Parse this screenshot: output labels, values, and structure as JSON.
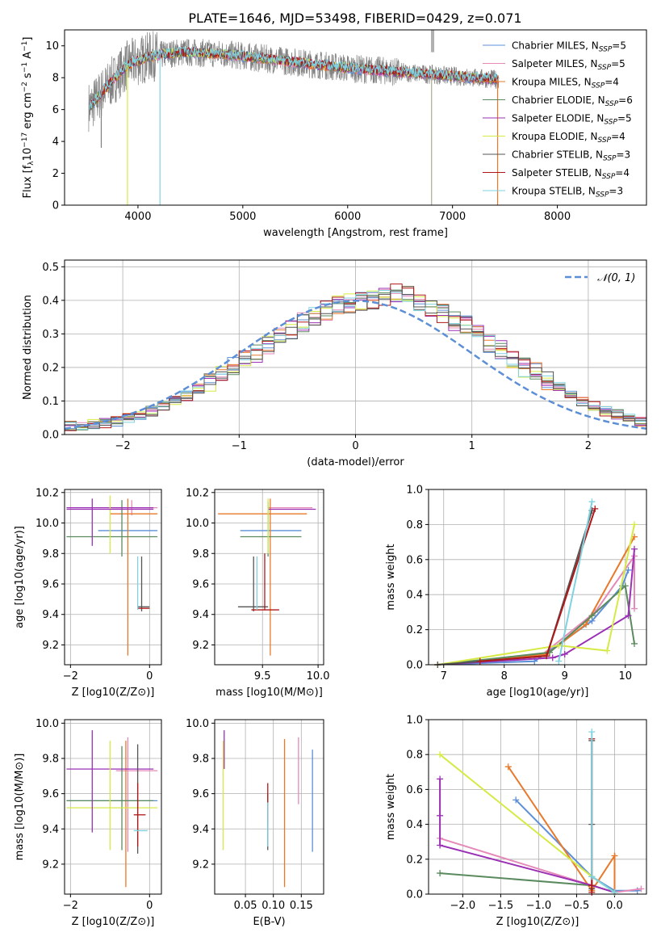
{
  "figure": {
    "title": "PLATE=1646, MJD=53498, FIBERID=0429, z=0.071"
  },
  "chart_data": [
    {
      "id": "spectrum",
      "type": "line",
      "title": "PLATE=1646, MJD=53498, FIBERID=0429, z=0.071",
      "xlabel": "wavelength [Angstrom, rest frame]",
      "ylabel": "Flux [f_λ 10^-17 erg cm^-2 s^-1 A^-1]",
      "xlim": [
        3300,
        8850
      ],
      "ylim": [
        0,
        11
      ],
      "xticks": [
        "4000",
        "5000",
        "6000",
        "7000",
        "8000"
      ],
      "yticks": [
        "0",
        "2",
        "4",
        "6",
        "8",
        "10"
      ],
      "legend_position": "top-right",
      "continuum": {
        "x": [
          3550,
          3700,
          3900,
          4100,
          4400,
          4800,
          5200,
          5600,
          6000,
          6400,
          6800,
          7200,
          7400
        ],
        "y": [
          6.2,
          7.4,
          8.8,
          9.3,
          9.6,
          9.5,
          9.2,
          8.9,
          8.6,
          8.4,
          8.2,
          8.0,
          7.9
        ]
      },
      "series": [
        {
          "name": "Chabrier MILES, N_SSP=5",
          "color": "#5c8fd6"
        },
        {
          "name": "Salpeter MILES, N_SSP=5",
          "color": "#e58ab8"
        },
        {
          "name": "Kroupa MILES, N_SSP=4",
          "color": "#e8792b"
        },
        {
          "name": "Chabrier ELODIE, N_SSP=6",
          "color": "#5a8a5e"
        },
        {
          "name": "Salpeter ELODIE, N_SSP=5",
          "color": "#9b30b5"
        },
        {
          "name": "Kroupa ELODIE, N_SSP=4",
          "color": "#d6ea45"
        },
        {
          "name": "Chabrier STELIB, N_SSP=3",
          "color": "#555555"
        },
        {
          "name": "Salpeter STELIB, N_SSP=4",
          "color": "#b01818"
        },
        {
          "name": "Kroupa STELIB, N_SSP=3",
          "color": "#7fd3e0"
        }
      ]
    },
    {
      "id": "residuals",
      "type": "bar",
      "xlabel": "(data-model)/error",
      "ylabel": "Normed distribution",
      "xlim": [
        -2.5,
        2.5
      ],
      "ylim": [
        0,
        0.52
      ],
      "xticks": [
        "−2",
        "−1",
        "0",
        "1",
        "2"
      ],
      "yticks": [
        "0.0",
        "0.1",
        "0.2",
        "0.3",
        "0.4",
        "0.5"
      ],
      "legend": "𝒩(0, 1)",
      "legend_position": "top-right",
      "bin_width": 0.1,
      "bin_start": -2.5,
      "values": [
        0.025,
        0.028,
        0.03,
        0.035,
        0.04,
        0.05,
        0.06,
        0.07,
        0.085,
        0.1,
        0.115,
        0.135,
        0.155,
        0.175,
        0.2,
        0.22,
        0.245,
        0.27,
        0.29,
        0.31,
        0.335,
        0.355,
        0.37,
        0.385,
        0.39,
        0.395,
        0.4,
        0.41,
        0.425,
        0.415,
        0.39,
        0.38,
        0.36,
        0.34,
        0.325,
        0.3,
        0.27,
        0.25,
        0.225,
        0.2,
        0.185,
        0.16,
        0.14,
        0.12,
        0.1,
        0.085,
        0.07,
        0.06,
        0.05,
        0.04
      ],
      "gauss": {
        "mu": 0,
        "sigma": 1,
        "color": "#5c8fd6"
      }
    },
    {
      "id": "age_vs_Z",
      "type": "scatter",
      "xlabel": "Z [log10(Z/Z⊙)]",
      "ylabel": "age [log10(age/yr)]",
      "xlim": [
        -2.15,
        0.3
      ],
      "ylim": [
        9.07,
        10.22
      ],
      "xticks": [
        "−2",
        "0"
      ],
      "yticks": [
        "9.2",
        "9.4",
        "9.6",
        "9.8",
        "10.0",
        "10.2"
      ],
      "points": [
        {
          "x": -0.3,
          "y": 9.95,
          "xlo": -1.3,
          "xhi": 0.2,
          "ylo": 9.95,
          "yhi": 9.95,
          "color": "#5c8fd6"
        },
        {
          "x": -0.45,
          "y": 10.1,
          "xlo": -0.95,
          "xhi": 0.2,
          "ylo": 10.05,
          "yhi": 10.15,
          "color": "#e58ab8"
        },
        {
          "x": -0.55,
          "y": 10.06,
          "xlo": -1.0,
          "xhi": 0.2,
          "ylo": 9.13,
          "yhi": 10.16,
          "color": "#e8792b"
        },
        {
          "x": -0.7,
          "y": 9.91,
          "xlo": -2.1,
          "xhi": 0.2,
          "ylo": 9.78,
          "yhi": 10.15,
          "color": "#5a8a5e"
        },
        {
          "x": -0.4,
          "y": 10.1,
          "xlo": -2.1,
          "xhi": 0.1,
          "ylo": 10.1,
          "yhi": 10.1,
          "color": "#9b30b5"
        },
        {
          "x": -1.0,
          "y": 9.96,
          "xlo": -1.0,
          "xhi": -1.0,
          "ylo": 9.8,
          "yhi": 10.18,
          "color": "#d6ea45"
        },
        {
          "x": -0.2,
          "y": 9.45,
          "xlo": -0.3,
          "xhi": 0.0,
          "ylo": 9.42,
          "yhi": 9.78,
          "color": "#555555"
        },
        {
          "x": -0.15,
          "y": 9.44,
          "xlo": -0.3,
          "xhi": 0.0,
          "ylo": 9.44,
          "yhi": 9.44,
          "color": "#b01818"
        },
        {
          "x": -0.3,
          "y": 9.44,
          "xlo": -0.3,
          "xhi": -0.3,
          "ylo": 9.43,
          "yhi": 9.78,
          "color": "#7fd3e0"
        },
        {
          "x": -1.45,
          "y": 10.09,
          "xlo": -2.1,
          "xhi": 0.1,
          "ylo": 9.85,
          "yhi": 10.16,
          "color": "#9b30b5"
        }
      ]
    },
    {
      "id": "age_vs_mass",
      "type": "scatter",
      "xlabel": "mass [log10(M/M⊙)]",
      "xlim": [
        9.07,
        10.05
      ],
      "ylim": [
        9.07,
        10.22
      ],
      "xticks": [
        "9.5",
        "10.0"
      ],
      "yticks": [
        "9.2",
        "9.4",
        "9.6",
        "9.8",
        "10.0",
        "10.2"
      ],
      "points": [
        {
          "x": 9.55,
          "y": 9.95,
          "xlo": 9.3,
          "xhi": 9.85,
          "ylo": 9.95,
          "yhi": 9.95,
          "color": "#5c8fd6"
        },
        {
          "x": 9.7,
          "y": 10.1,
          "xlo": 9.55,
          "xhi": 9.95,
          "ylo": 10.1,
          "yhi": 10.1,
          "color": "#e58ab8"
        },
        {
          "x": 9.57,
          "y": 10.06,
          "xlo": 9.1,
          "xhi": 9.9,
          "ylo": 9.13,
          "yhi": 10.16,
          "color": "#e8792b"
        },
        {
          "x": 9.55,
          "y": 9.91,
          "xlo": 9.3,
          "xhi": 9.85,
          "ylo": 9.78,
          "yhi": 10.14,
          "color": "#5a8a5e"
        },
        {
          "x": 9.75,
          "y": 10.09,
          "xlo": 9.55,
          "xhi": 9.98,
          "ylo": 10.09,
          "yhi": 10.09,
          "color": "#9b30b5"
        },
        {
          "x": 9.55,
          "y": 9.96,
          "xlo": 9.55,
          "xhi": 9.55,
          "ylo": 9.8,
          "yhi": 10.16,
          "color": "#d6ea45"
        },
        {
          "x": 9.42,
          "y": 9.45,
          "xlo": 9.28,
          "xhi": 9.55,
          "ylo": 9.42,
          "yhi": 9.78,
          "color": "#555555"
        },
        {
          "x": 9.52,
          "y": 9.43,
          "xlo": 9.4,
          "xhi": 9.65,
          "ylo": 9.43,
          "yhi": 9.8,
          "color": "#b01818"
        },
        {
          "x": 9.45,
          "y": 9.44,
          "xlo": 9.45,
          "xhi": 9.45,
          "ylo": 9.43,
          "yhi": 9.78,
          "color": "#7fd3e0"
        }
      ]
    },
    {
      "id": "weight_vs_age",
      "type": "line",
      "xlabel": "age [log10(age/yr)]",
      "ylabel": "mass weight",
      "xlim": [
        6.75,
        10.35
      ],
      "ylim": [
        0,
        1
      ],
      "xticks": [
        "7",
        "8",
        "9",
        "10"
      ],
      "yticks": [
        "0.0",
        "0.2",
        "0.4",
        "0.6",
        "0.8",
        "1.0"
      ],
      "series": [
        {
          "color": "#5c8fd6",
          "x": [
            6.9,
            8.5,
            9.45,
            9.95,
            10.05
          ],
          "y": [
            0.0,
            0.02,
            0.25,
            0.45,
            0.54
          ]
        },
        {
          "color": "#e58ab8",
          "x": [
            6.9,
            8.6,
            9.5,
            10.15,
            10.15
          ],
          "y": [
            0.0,
            0.05,
            0.3,
            0.62,
            0.32
          ]
        },
        {
          "color": "#e8792b",
          "x": [
            6.9,
            8.7,
            9.35,
            10.15
          ],
          "y": [
            0.0,
            0.06,
            0.23,
            0.73
          ]
        },
        {
          "color": "#5a8a5e",
          "x": [
            6.9,
            8.75,
            9.45,
            10.0,
            10.15
          ],
          "y": [
            0.0,
            0.07,
            0.28,
            0.45,
            0.12
          ]
        },
        {
          "color": "#9b30b5",
          "x": [
            6.9,
            8.8,
            9.0,
            10.05,
            10.15
          ],
          "y": [
            0.0,
            0.04,
            0.06,
            0.28,
            0.66
          ]
        },
        {
          "color": "#d6ea45",
          "x": [
            6.9,
            8.9,
            9.7,
            10.15
          ],
          "y": [
            0.0,
            0.11,
            0.08,
            0.8
          ]
        },
        {
          "color": "#555555",
          "x": [
            6.9,
            8.7,
            9.45
          ],
          "y": [
            0.0,
            0.05,
            0.88
          ]
        },
        {
          "color": "#b01818",
          "x": [
            7.6,
            8.7,
            9.5
          ],
          "y": [
            0.02,
            0.05,
            0.89
          ]
        },
        {
          "color": "#7fd3e0",
          "x": [
            8.9,
            9.45
          ],
          "y": [
            0.02,
            0.93
          ]
        }
      ]
    },
    {
      "id": "mass_vs_Z",
      "type": "scatter",
      "xlabel": "Z [log10(Z/Z⊙)]",
      "ylabel": "mass [log10(M/M⊙)]",
      "xlim": [
        -2.15,
        0.3
      ],
      "ylim": [
        9.03,
        10.02
      ],
      "xticks": [
        "−2",
        "0"
      ],
      "yticks": [
        "9.2",
        "9.4",
        "9.6",
        "9.8",
        "10.0"
      ],
      "points": [
        {
          "x": -0.5,
          "y": 9.56,
          "xlo": -2.1,
          "xhi": 0.2,
          "ylo": 9.56,
          "yhi": 9.56,
          "color": "#5c8fd6"
        },
        {
          "x": -0.55,
          "y": 9.73,
          "xlo": -0.85,
          "xhi": 0.2,
          "ylo": 9.27,
          "yhi": 9.92,
          "color": "#e58ab8"
        },
        {
          "x": -0.6,
          "y": 9.55,
          "xlo": -0.6,
          "xhi": -0.6,
          "ylo": 9.07,
          "yhi": 9.9,
          "color": "#e8792b"
        },
        {
          "x": -0.7,
          "y": 9.56,
          "xlo": -2.1,
          "xhi": 0.1,
          "ylo": 9.28,
          "yhi": 9.87,
          "color": "#5a8a5e"
        },
        {
          "x": -0.8,
          "y": 9.74,
          "xlo": -2.1,
          "xhi": 0.1,
          "ylo": 9.74,
          "yhi": 9.74,
          "color": "#9b30b5"
        },
        {
          "x": -1.0,
          "y": 9.52,
          "xlo": -2.1,
          "xhi": 0.2,
          "ylo": 9.28,
          "yhi": 9.9,
          "color": "#d6ea45"
        },
        {
          "x": -0.3,
          "y": 9.56,
          "xlo": -0.3,
          "xhi": -0.3,
          "ylo": 9.26,
          "yhi": 9.88,
          "color": "#555555"
        },
        {
          "x": -0.3,
          "y": 9.48,
          "xlo": -0.4,
          "xhi": -0.1,
          "ylo": 9.3,
          "yhi": 9.66,
          "color": "#b01818"
        },
        {
          "x": -0.25,
          "y": 9.39,
          "xlo": -0.4,
          "xhi": -0.05,
          "ylo": 9.39,
          "yhi": 9.39,
          "color": "#7fd3e0"
        },
        {
          "x": -1.45,
          "y": 9.74,
          "xlo": -1.45,
          "xhi": -1.45,
          "ylo": 9.38,
          "yhi": 9.96,
          "color": "#9b30b5"
        }
      ]
    },
    {
      "id": "mass_vs_ebv",
      "type": "scatter",
      "xlabel": "E(B-V)",
      "xlim": [
        -0.005,
        0.19
      ],
      "ylim": [
        9.03,
        10.02
      ],
      "xticks": [
        "0.05",
        "0.10",
        "0.15"
      ],
      "yticks": [
        "9.2",
        "9.4",
        "9.6",
        "9.8",
        "10.0"
      ],
      "points": [
        {
          "x": 0.17,
          "y": 9.56,
          "xlo": 0.17,
          "xhi": 0.17,
          "ylo": 9.27,
          "yhi": 9.85,
          "color": "#5c8fd6"
        },
        {
          "x": 0.145,
          "y": 9.73,
          "xlo": 0.145,
          "xhi": 0.145,
          "ylo": 9.54,
          "yhi": 9.92,
          "color": "#e58ab8"
        },
        {
          "x": 0.12,
          "y": 9.55,
          "xlo": 0.12,
          "xhi": 0.12,
          "ylo": 9.07,
          "yhi": 9.91,
          "color": "#e8792b"
        },
        {
          "x": 0.09,
          "y": 9.45,
          "xlo": 0.09,
          "xhi": 0.09,
          "ylo": 9.3,
          "yhi": 9.6,
          "color": "#5a8a5e"
        },
        {
          "x": 0.012,
          "y": 9.85,
          "xlo": 0.012,
          "xhi": 0.012,
          "ylo": 9.74,
          "yhi": 9.96,
          "color": "#9b30b5"
        },
        {
          "x": 0.01,
          "y": 9.6,
          "xlo": 0.01,
          "xhi": 0.01,
          "ylo": 9.28,
          "yhi": 9.9,
          "color": "#d6ea45"
        },
        {
          "x": 0.09,
          "y": 9.42,
          "xlo": 0.09,
          "xhi": 0.09,
          "ylo": 9.28,
          "yhi": 9.55,
          "color": "#555555"
        },
        {
          "x": 0.09,
          "y": 9.55,
          "xlo": 0.09,
          "xhi": 0.09,
          "ylo": 9.44,
          "yhi": 9.66,
          "color": "#b01818"
        },
        {
          "x": 0.09,
          "y": 9.42,
          "xlo": 0.09,
          "xhi": 0.09,
          "ylo": 9.3,
          "yhi": 9.55,
          "color": "#7fd3e0"
        }
      ]
    },
    {
      "id": "weight_vs_Z",
      "type": "line",
      "xlabel": "Z [log10(Z/Z⊙)]",
      "ylabel": "mass weight",
      "xlim": [
        -2.45,
        0.42
      ],
      "ylim": [
        0,
        1
      ],
      "xticks": [
        "−2.0",
        "−1.5",
        "−1.0",
        "−0.5",
        "0.0"
      ],
      "yticks": [
        "0.0",
        "0.2",
        "0.4",
        "0.6",
        "0.8",
        "1.0"
      ],
      "series": [
        {
          "color": "#5c8fd6",
          "x": [
            -1.3,
            -0.3,
            0.0,
            0.3
          ],
          "y": [
            0.54,
            0.1,
            0.02,
            0.02
          ]
        },
        {
          "color": "#e58ab8",
          "x": [
            -2.3,
            -0.3,
            0.0,
            0.35
          ],
          "y": [
            0.32,
            0.05,
            0.01,
            0.03
          ]
        },
        {
          "color": "#e8792b",
          "x": [
            -1.4,
            -0.3,
            0.0,
            0.0
          ],
          "y": [
            0.73,
            0.02,
            0.22,
            0.01
          ]
        },
        {
          "color": "#5a8a5e",
          "x": [
            -2.3,
            -0.3,
            0.0
          ],
          "y": [
            0.12,
            0.05,
            0.01
          ]
        },
        {
          "color": "#9b30b5",
          "x": [
            -2.3,
            -2.3,
            -2.3,
            -0.3,
            0.0
          ],
          "y": [
            0.66,
            0.45,
            0.28,
            0.05,
            0.01
          ]
        },
        {
          "color": "#d6ea45",
          "x": [
            -2.3,
            -0.3,
            0.0
          ],
          "y": [
            0.8,
            0.1,
            0.01
          ]
        },
        {
          "color": "#555555",
          "x": [
            -0.3,
            -0.3,
            -0.3
          ],
          "y": [
            0.88,
            0.4,
            0.03
          ]
        },
        {
          "color": "#b01818",
          "x": [
            -0.3,
            -0.3,
            -0.3
          ],
          "y": [
            0.89,
            0.05,
            0.01
          ]
        },
        {
          "color": "#7fd3e0",
          "x": [
            -0.3,
            -0.3,
            0.0
          ],
          "y": [
            0.93,
            0.1,
            0.01
          ]
        }
      ]
    }
  ]
}
